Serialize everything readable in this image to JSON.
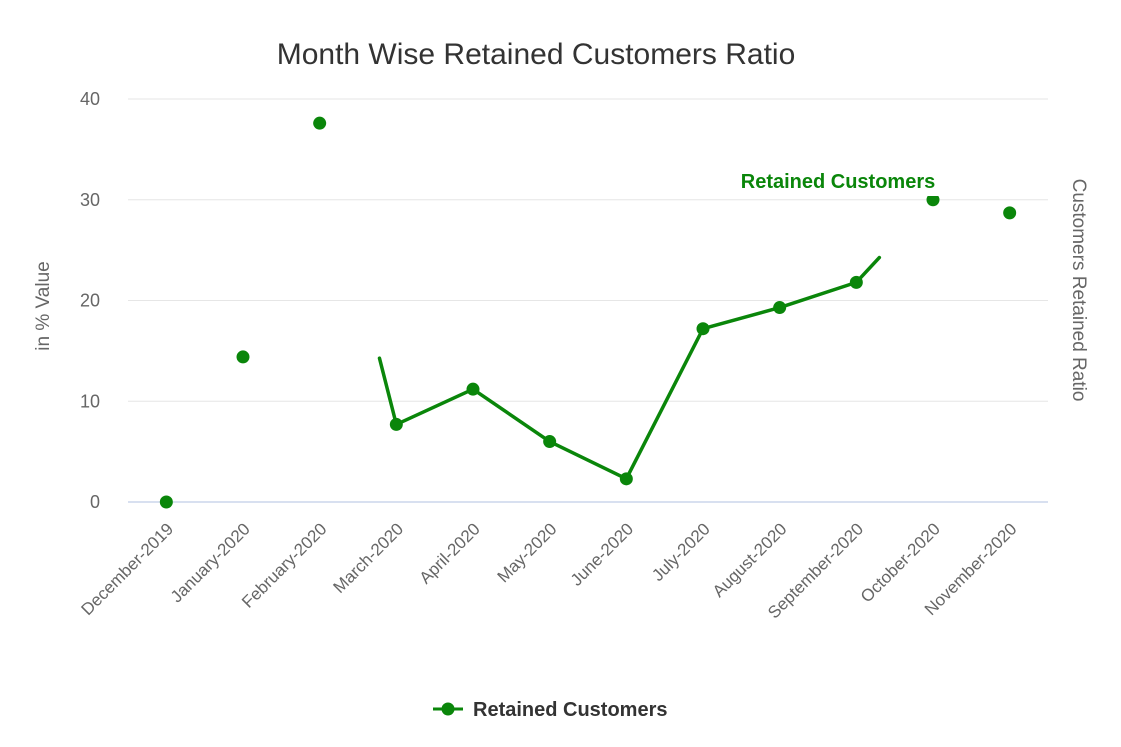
{
  "chart_data": {
    "type": "line",
    "title": "Month Wise Retained Customers Ratio",
    "ylabel": "in % Value",
    "ylabel_right": "Customers Retained Ratio",
    "ylim": [
      0,
      40
    ],
    "yticks": [
      "0",
      "10",
      "20",
      "30",
      "40"
    ],
    "grid": true,
    "legend": "bottom-center",
    "categories": [
      "December-2019",
      "January-2020",
      "February-2020",
      "March-2020",
      "April-2020",
      "May-2020",
      "June-2020",
      "July-2020",
      "August-2020",
      "September-2020",
      "October-2020",
      "November-2020"
    ],
    "series": [
      {
        "name": "Retained Customers",
        "color": "#0a860a",
        "values": [
          0,
          14.4,
          37.6,
          7.7,
          11.2,
          6.0,
          2.3,
          17.2,
          19.3,
          21.8,
          30.0,
          28.7
        ]
      }
    ],
    "annotations": [
      {
        "text": "Retained Customers"
      }
    ]
  }
}
